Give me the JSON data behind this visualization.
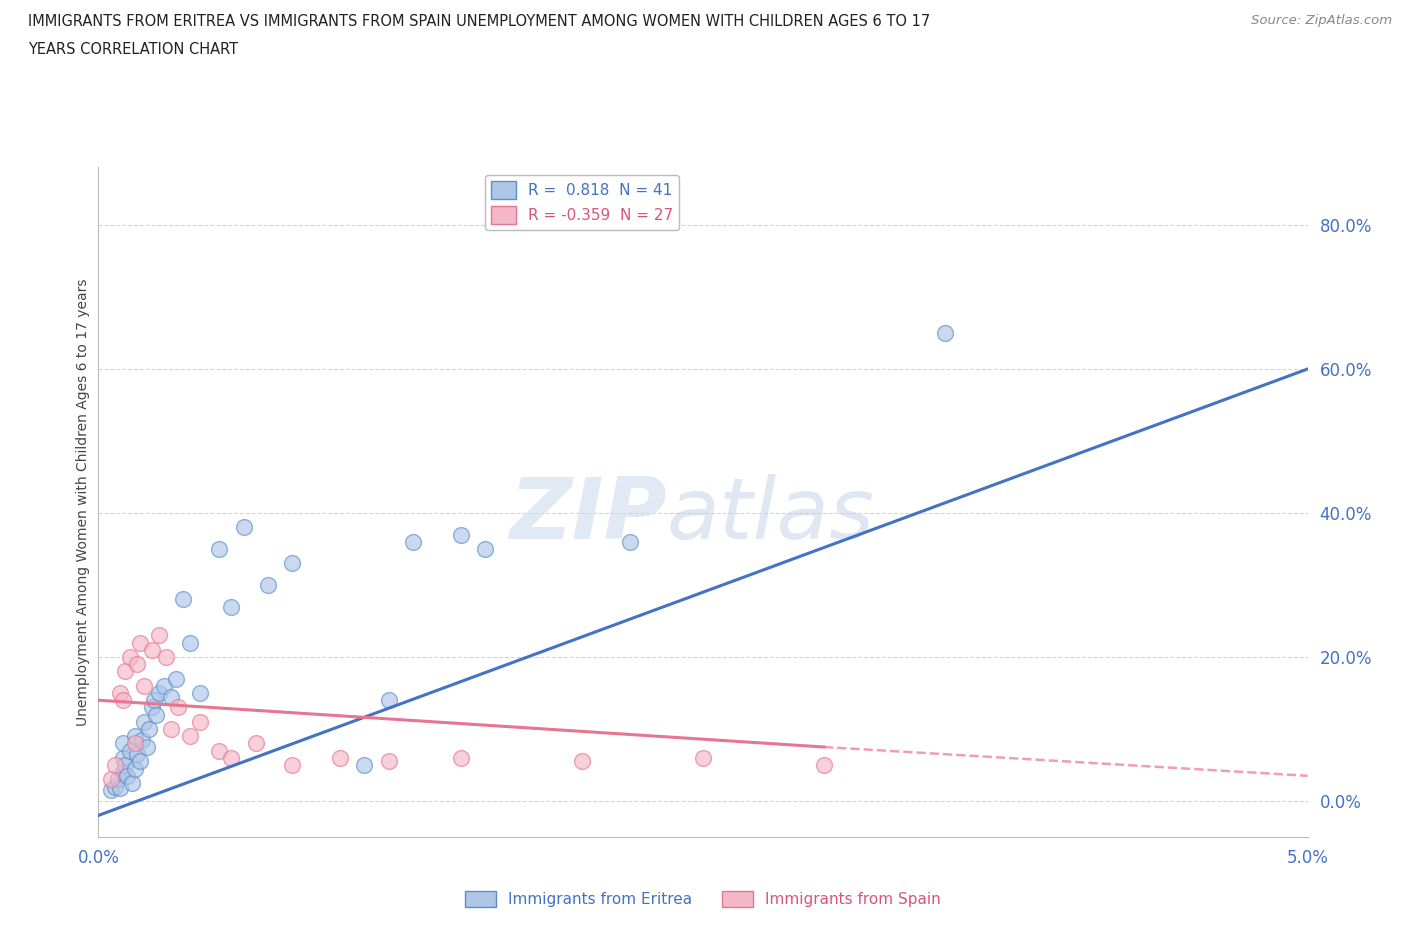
{
  "title_line1": "IMMIGRANTS FROM ERITREA VS IMMIGRANTS FROM SPAIN UNEMPLOYMENT AMONG WOMEN WITH CHILDREN AGES 6 TO 17",
  "title_line2": "YEARS CORRELATION CHART",
  "source": "Source: ZipAtlas.com",
  "ylabel": "Unemployment Among Women with Children Ages 6 to 17 years",
  "xlim": [
    0.0,
    5.0
  ],
  "ylim": [
    -5.0,
    88.0
  ],
  "yticks": [
    0.0,
    20.0,
    40.0,
    60.0,
    80.0
  ],
  "xtick_positions": [
    0.0,
    1.0,
    2.0,
    3.0,
    4.0,
    5.0
  ],
  "legend1_r": "R =  0.818",
  "legend1_n": "N = 41",
  "legend2_r": "R = -0.359",
  "legend2_n": "N = 27",
  "eritrea_fill": "#aec6e8",
  "eritrea_edge": "#5b8fc9",
  "spain_fill": "#f4b8c8",
  "spain_edge": "#e8758f",
  "eritrea_line_color": "#4472c4",
  "spain_line_color": "#e8758f",
  "watermark_zip": "ZIP",
  "watermark_atlas": "atlas",
  "eritrea_scatter_x": [
    0.05,
    0.07,
    0.08,
    0.09,
    0.1,
    0.1,
    0.1,
    0.11,
    0.12,
    0.13,
    0.14,
    0.15,
    0.15,
    0.16,
    0.17,
    0.18,
    0.19,
    0.2,
    0.21,
    0.22,
    0.23,
    0.24,
    0.25,
    0.27,
    0.3,
    0.32,
    0.35,
    0.38,
    0.42,
    0.5,
    0.55,
    0.6,
    0.7,
    0.8,
    1.1,
    1.2,
    1.3,
    1.5,
    1.6,
    2.2,
    3.5
  ],
  "eritrea_scatter_y": [
    1.5,
    2.0,
    3.0,
    1.8,
    4.0,
    6.0,
    8.0,
    5.0,
    3.5,
    7.0,
    2.5,
    4.5,
    9.0,
    6.5,
    5.5,
    8.5,
    11.0,
    7.5,
    10.0,
    13.0,
    14.0,
    12.0,
    15.0,
    16.0,
    14.5,
    17.0,
    28.0,
    22.0,
    15.0,
    35.0,
    27.0,
    38.0,
    30.0,
    33.0,
    5.0,
    14.0,
    36.0,
    37.0,
    35.0,
    36.0,
    65.0
  ],
  "spain_scatter_x": [
    0.05,
    0.07,
    0.09,
    0.1,
    0.11,
    0.13,
    0.15,
    0.16,
    0.17,
    0.19,
    0.22,
    0.25,
    0.28,
    0.3,
    0.33,
    0.38,
    0.42,
    0.5,
    0.55,
    0.65,
    0.8,
    1.0,
    1.2,
    1.5,
    2.0,
    2.5,
    3.0
  ],
  "spain_scatter_y": [
    3.0,
    5.0,
    15.0,
    14.0,
    18.0,
    20.0,
    8.0,
    19.0,
    22.0,
    16.0,
    21.0,
    23.0,
    20.0,
    10.0,
    13.0,
    9.0,
    11.0,
    7.0,
    6.0,
    8.0,
    5.0,
    6.0,
    5.5,
    6.0,
    5.5,
    6.0,
    5.0
  ],
  "eritrea_reg_x0": 0.0,
  "eritrea_reg_y0": -2.0,
  "eritrea_reg_x1": 5.0,
  "eritrea_reg_y1": 60.0,
  "spain_reg_x0": 0.0,
  "spain_reg_y0": 14.0,
  "spain_reg_x1": 3.0,
  "spain_reg_y1": 7.5,
  "spain_dash_x0": 3.0,
  "spain_dash_y0": 7.5,
  "spain_dash_x1": 5.0,
  "spain_dash_y1": 3.5
}
